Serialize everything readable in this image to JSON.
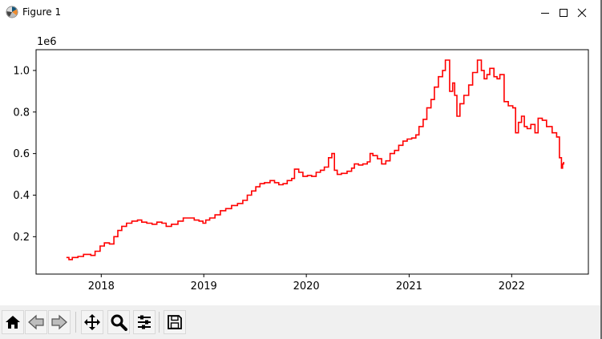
{
  "window": {
    "title": "Figure 1",
    "controls": [
      "minimize-icon",
      "maximize-icon",
      "close-icon"
    ]
  },
  "toolbar": {
    "buttons": [
      "home-icon",
      "back-icon",
      "forward-icon",
      "pan-icon",
      "zoom-icon",
      "configure-subplots-icon",
      "save-icon"
    ]
  },
  "chart_data": {
    "type": "line",
    "title": "",
    "xlabel": "",
    "ylabel": "",
    "y_offset_label": "1e6",
    "line_color": "#ff0000",
    "line_style": "steps",
    "xlim": [
      "2017-05-14",
      "2022-10-01"
    ],
    "ylim": [
      0.02,
      1.1
    ],
    "x_ticks": [
      {
        "date": "2018-01-01",
        "label": "2018"
      },
      {
        "date": "2019-01-01",
        "label": "2019"
      },
      {
        "date": "2020-01-01",
        "label": "2020"
      },
      {
        "date": "2021-01-01",
        "label": "2021"
      },
      {
        "date": "2022-01-01",
        "label": "2022"
      }
    ],
    "y_ticks": [
      {
        "value": 0.2,
        "label": "0.2"
      },
      {
        "value": 0.4,
        "label": "0.4"
      },
      {
        "value": 0.6,
        "label": "0.6"
      },
      {
        "value": 0.8,
        "label": "0.8"
      },
      {
        "value": 1.0,
        "label": "1.0"
      }
    ],
    "grid": false,
    "series": [
      {
        "points": [
          [
            "2017-08-30",
            0.1
          ],
          [
            "2017-09-08",
            0.09
          ],
          [
            "2017-09-20",
            0.1
          ],
          [
            "2017-10-10",
            0.105
          ],
          [
            "2017-10-30",
            0.115
          ],
          [
            "2017-11-25",
            0.11
          ],
          [
            "2017-12-10",
            0.13
          ],
          [
            "2017-12-28",
            0.155
          ],
          [
            "2018-01-12",
            0.17
          ],
          [
            "2018-01-30",
            0.165
          ],
          [
            "2018-02-15",
            0.2
          ],
          [
            "2018-03-01",
            0.23
          ],
          [
            "2018-03-15",
            0.25
          ],
          [
            "2018-04-01",
            0.265
          ],
          [
            "2018-04-20",
            0.275
          ],
          [
            "2018-05-10",
            0.28
          ],
          [
            "2018-05-25",
            0.27
          ],
          [
            "2018-06-12",
            0.265
          ],
          [
            "2018-07-01",
            0.26
          ],
          [
            "2018-07-18",
            0.27
          ],
          [
            "2018-08-05",
            0.265
          ],
          [
            "2018-08-20",
            0.25
          ],
          [
            "2018-09-08",
            0.26
          ],
          [
            "2018-10-01",
            0.275
          ],
          [
            "2018-10-20",
            0.29
          ],
          [
            "2018-11-10",
            0.29
          ],
          [
            "2018-11-28",
            0.28
          ],
          [
            "2018-12-15",
            0.275
          ],
          [
            "2018-12-29",
            0.265
          ],
          [
            "2019-01-08",
            0.28
          ],
          [
            "2019-01-22",
            0.29
          ],
          [
            "2019-02-10",
            0.305
          ],
          [
            "2019-03-01",
            0.325
          ],
          [
            "2019-03-20",
            0.335
          ],
          [
            "2019-04-10",
            0.35
          ],
          [
            "2019-05-01",
            0.36
          ],
          [
            "2019-05-20",
            0.375
          ],
          [
            "2019-06-05",
            0.4
          ],
          [
            "2019-06-20",
            0.42
          ],
          [
            "2019-07-05",
            0.44
          ],
          [
            "2019-07-20",
            0.455
          ],
          [
            "2019-08-05",
            0.46
          ],
          [
            "2019-08-25",
            0.47
          ],
          [
            "2019-09-10",
            0.46
          ],
          [
            "2019-09-25",
            0.45
          ],
          [
            "2019-10-10",
            0.455
          ],
          [
            "2019-10-25",
            0.47
          ],
          [
            "2019-11-10",
            0.48
          ],
          [
            "2019-11-20",
            0.525
          ],
          [
            "2019-12-05",
            0.51
          ],
          [
            "2019-12-20",
            0.49
          ],
          [
            "2020-01-05",
            0.495
          ],
          [
            "2020-01-20",
            0.49
          ],
          [
            "2020-02-05",
            0.51
          ],
          [
            "2020-02-20",
            0.52
          ],
          [
            "2020-03-05",
            0.535
          ],
          [
            "2020-03-20",
            0.58
          ],
          [
            "2020-04-01",
            0.6
          ],
          [
            "2020-04-10",
            0.52
          ],
          [
            "2020-04-20",
            0.5
          ],
          [
            "2020-05-05",
            0.505
          ],
          [
            "2020-05-25",
            0.515
          ],
          [
            "2020-06-10",
            0.53
          ],
          [
            "2020-06-20",
            0.55
          ],
          [
            "2020-07-05",
            0.545
          ],
          [
            "2020-07-20",
            0.55
          ],
          [
            "2020-08-05",
            0.56
          ],
          [
            "2020-08-15",
            0.6
          ],
          [
            "2020-08-25",
            0.59
          ],
          [
            "2020-09-10",
            0.575
          ],
          [
            "2020-09-25",
            0.55
          ],
          [
            "2020-10-10",
            0.565
          ],
          [
            "2020-10-25",
            0.6
          ],
          [
            "2020-11-10",
            0.615
          ],
          [
            "2020-11-25",
            0.64
          ],
          [
            "2020-12-10",
            0.66
          ],
          [
            "2020-12-25",
            0.67
          ],
          [
            "2021-01-10",
            0.675
          ],
          [
            "2021-01-25",
            0.69
          ],
          [
            "2021-02-05",
            0.73
          ],
          [
            "2021-02-20",
            0.765
          ],
          [
            "2021-03-05",
            0.82
          ],
          [
            "2021-03-20",
            0.86
          ],
          [
            "2021-04-01",
            0.92
          ],
          [
            "2021-04-15",
            0.97
          ],
          [
            "2021-04-30",
            1.0
          ],
          [
            "2021-05-10",
            1.05
          ],
          [
            "2021-05-25",
            0.9
          ],
          [
            "2021-06-05",
            0.94
          ],
          [
            "2021-06-12",
            0.88
          ],
          [
            "2021-06-20",
            0.78
          ],
          [
            "2021-07-01",
            0.84
          ],
          [
            "2021-07-15",
            0.88
          ],
          [
            "2021-08-01",
            0.93
          ],
          [
            "2021-08-15",
            0.99
          ],
          [
            "2021-09-01",
            1.05
          ],
          [
            "2021-09-15",
            1.0
          ],
          [
            "2021-09-25",
            0.96
          ],
          [
            "2021-10-05",
            0.98
          ],
          [
            "2021-10-15",
            1.01
          ],
          [
            "2021-10-30",
            0.97
          ],
          [
            "2021-11-10",
            0.96
          ],
          [
            "2021-11-20",
            0.98
          ],
          [
            "2021-12-05",
            0.85
          ],
          [
            "2021-12-20",
            0.83
          ],
          [
            "2022-01-05",
            0.82
          ],
          [
            "2022-01-15",
            0.7
          ],
          [
            "2022-01-25",
            0.75
          ],
          [
            "2022-02-05",
            0.78
          ],
          [
            "2022-02-15",
            0.73
          ],
          [
            "2022-02-25",
            0.72
          ],
          [
            "2022-03-10",
            0.74
          ],
          [
            "2022-03-25",
            0.7
          ],
          [
            "2022-04-05",
            0.77
          ],
          [
            "2022-04-20",
            0.76
          ],
          [
            "2022-05-05",
            0.73
          ],
          [
            "2022-05-25",
            0.7
          ],
          [
            "2022-06-10",
            0.68
          ],
          [
            "2022-06-20",
            0.58
          ],
          [
            "2022-06-27",
            0.53
          ],
          [
            "2022-07-01",
            0.55
          ],
          [
            "2022-07-05",
            0.56
          ]
        ]
      }
    ]
  }
}
